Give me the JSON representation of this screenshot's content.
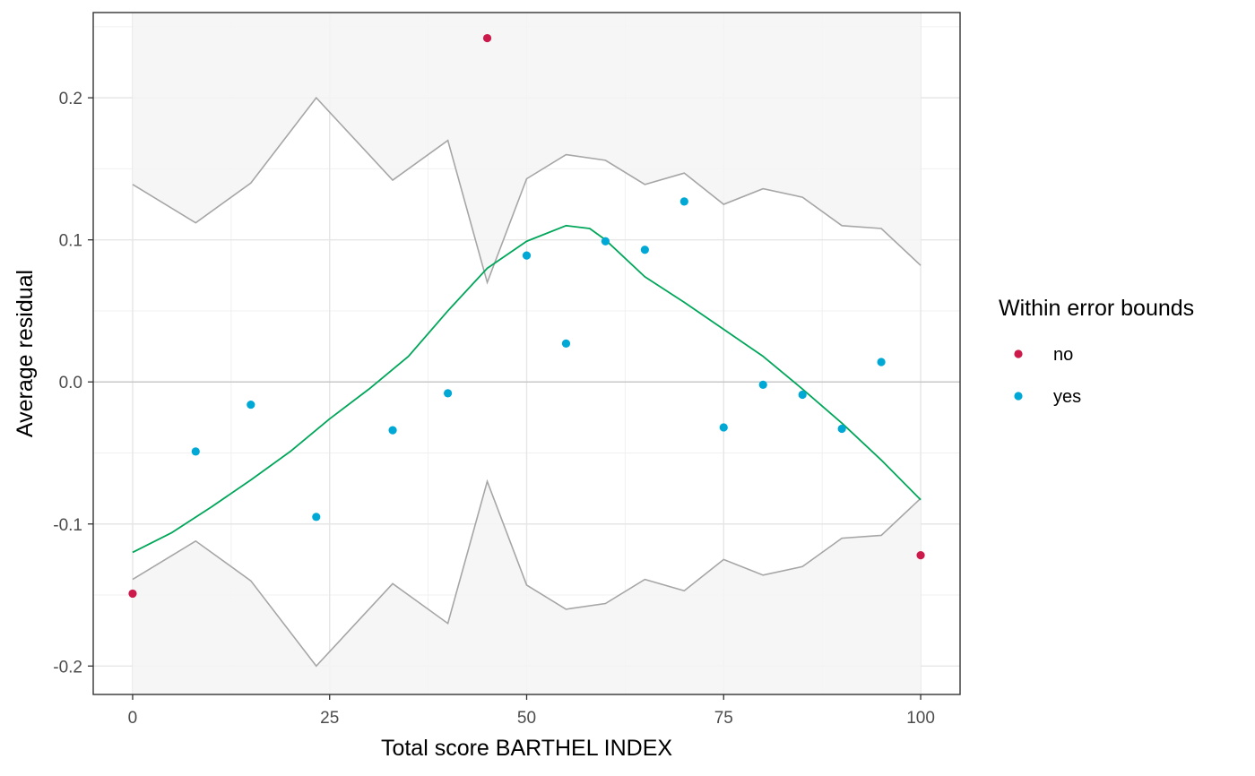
{
  "chart_data": {
    "type": "scatter",
    "xlabel": "Total score BARTHEL INDEX",
    "ylabel": "Average residual",
    "xlim": [
      -5,
      105
    ],
    "ylim": [
      -0.22,
      0.26
    ],
    "x_ticks": [
      0,
      25,
      50,
      75,
      100
    ],
    "x_tick_labels": [
      "0",
      "25",
      "50",
      "75",
      "100"
    ],
    "y_ticks": [
      -0.2,
      -0.1,
      0.0,
      0.1,
      0.2
    ],
    "y_tick_labels": [
      "-0.2",
      "-0.1",
      "0.0",
      "0.1",
      "0.2"
    ],
    "grid": true,
    "reference_line_y": 0,
    "legend": {
      "title": "Within error bounds",
      "placement": "right",
      "entries": [
        {
          "label": "no",
          "color": "#cc1a4a"
        },
        {
          "label": "yes",
          "color": "#00a8d6"
        }
      ]
    },
    "points": [
      {
        "x": 0,
        "y": -0.149,
        "group": "no"
      },
      {
        "x": 8,
        "y": -0.049,
        "group": "yes"
      },
      {
        "x": 15,
        "y": -0.016,
        "group": "yes"
      },
      {
        "x": 23.3,
        "y": -0.095,
        "group": "yes"
      },
      {
        "x": 33,
        "y": -0.034,
        "group": "yes"
      },
      {
        "x": 40,
        "y": -0.008,
        "group": "yes"
      },
      {
        "x": 45,
        "y": 0.242,
        "group": "no"
      },
      {
        "x": 50,
        "y": 0.089,
        "group": "yes"
      },
      {
        "x": 55,
        "y": 0.027,
        "group": "yes"
      },
      {
        "x": 60,
        "y": 0.099,
        "group": "yes"
      },
      {
        "x": 65,
        "y": 0.093,
        "group": "yes"
      },
      {
        "x": 70,
        "y": 0.127,
        "group": "yes"
      },
      {
        "x": 75,
        "y": -0.032,
        "group": "yes"
      },
      {
        "x": 80,
        "y": -0.002,
        "group": "yes"
      },
      {
        "x": 85,
        "y": -0.009,
        "group": "yes"
      },
      {
        "x": 90,
        "y": -0.033,
        "group": "yes"
      },
      {
        "x": 95,
        "y": 0.014,
        "group": "yes"
      },
      {
        "x": 100,
        "y": -0.122,
        "group": "no"
      }
    ],
    "error_bound": {
      "x": [
        0,
        8,
        15,
        23.3,
        33,
        40,
        45,
        50,
        55,
        60,
        65,
        70,
        75,
        80,
        85,
        90,
        95,
        100
      ],
      "upper": [
        0.139,
        0.112,
        0.14,
        0.2,
        0.142,
        0.17,
        0.07,
        0.143,
        0.16,
        0.156,
        0.139,
        0.147,
        0.125,
        0.136,
        0.13,
        0.11,
        0.108,
        0.082
      ],
      "lower": [
        -0.139,
        -0.112,
        -0.14,
        -0.2,
        -0.142,
        -0.17,
        -0.07,
        -0.143,
        -0.16,
        -0.156,
        -0.139,
        -0.147,
        -0.125,
        -0.136,
        -0.13,
        -0.11,
        -0.108,
        -0.082
      ],
      "line_color": "#a6a6a6",
      "shade_color": "#f5f5f5"
    },
    "smooth": {
      "color": "#00a65a",
      "x": [
        0,
        5,
        10,
        15,
        20,
        25,
        30,
        35,
        40,
        45,
        50,
        55,
        58,
        60,
        65,
        70,
        75,
        80,
        85,
        90,
        95,
        100
      ],
      "y": [
        -0.12,
        -0.106,
        -0.088,
        -0.069,
        -0.049,
        -0.026,
        -0.005,
        0.018,
        0.05,
        0.08,
        0.099,
        0.11,
        0.108,
        0.1,
        0.074,
        0.056,
        0.037,
        0.018,
        -0.005,
        -0.029,
        -0.055,
        -0.083
      ]
    }
  }
}
